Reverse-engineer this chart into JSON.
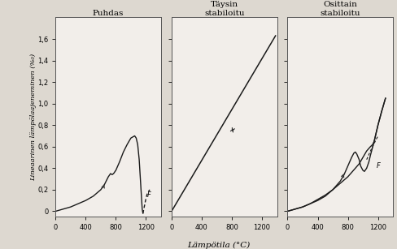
{
  "title1": "Puhdas",
  "title2": "Täysin\nstabiloitu",
  "title3": "Osittain\nstabiloitu",
  "xlabel": "Lämpötila (°C)",
  "ylabel": "Lineaarinen lämpölaajeneminen (%₀)",
  "xlim": [
    0,
    1400
  ],
  "ylim": [
    -0.05,
    1.8
  ],
  "xticks": [
    0,
    400,
    800,
    1200
  ],
  "yticks": [
    0,
    0.2,
    0.4,
    0.6,
    0.8,
    1.0,
    1.2,
    1.4,
    1.6
  ],
  "ytick_labels": [
    "0",
    "0,2",
    "0,4",
    "0,6",
    "0,8",
    "1,0",
    "1,2",
    "1,4",
    "1,6"
  ],
  "bg_color": "#f2eeea",
  "line_color": "#1a1a1a",
  "fig_bg": "#ddd8d0"
}
